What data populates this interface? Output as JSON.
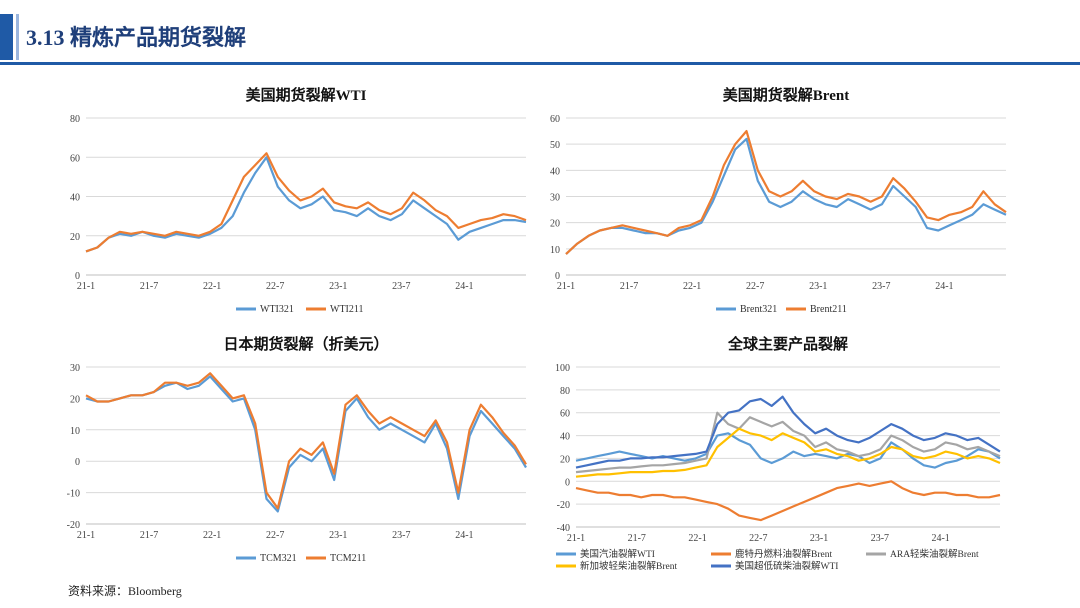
{
  "header": {
    "title": "3.13 精炼产品期货裂解"
  },
  "source": "资料来源：Bloomberg",
  "colors": {
    "accent": "#1f5aa6",
    "blue": "#5b9bd5",
    "orange": "#ed7d31",
    "gray": "#a5a5a5",
    "yellow": "#ffc000",
    "darkblue": "#4472c4"
  },
  "chart_data": [
    {
      "id": "wti",
      "type": "line",
      "title": "美国期货裂解WTI",
      "x_ticks": [
        "21-1",
        "21-7",
        "22-1",
        "22-7",
        "23-1",
        "23-7",
        "24-1"
      ],
      "ylim": [
        0,
        80
      ],
      "y_ticks": [
        0,
        20,
        40,
        60,
        80
      ],
      "grid": true,
      "legend": "bottom",
      "series": [
        {
          "name": "WTI321",
          "color": "#5b9bd5",
          "values": [
            12,
            14,
            19,
            21,
            20,
            22,
            20,
            19,
            21,
            20,
            19,
            21,
            24,
            30,
            42,
            52,
            60,
            45,
            38,
            34,
            36,
            40,
            33,
            32,
            30,
            34,
            30,
            28,
            31,
            38,
            34,
            30,
            26,
            18,
            22,
            24,
            26,
            28,
            28,
            27
          ]
        },
        {
          "name": "WTI211",
          "color": "#ed7d31",
          "values": [
            12,
            14,
            19,
            22,
            21,
            22,
            21,
            20,
            22,
            21,
            20,
            22,
            26,
            38,
            50,
            56,
            62,
            50,
            43,
            38,
            40,
            44,
            37,
            35,
            34,
            37,
            33,
            31,
            34,
            42,
            38,
            33,
            30,
            24,
            26,
            28,
            29,
            31,
            30,
            28
          ]
        }
      ]
    },
    {
      "id": "brent",
      "type": "line",
      "title": "美国期货裂解Brent",
      "x_ticks": [
        "21-1",
        "21-7",
        "22-1",
        "22-7",
        "23-1",
        "23-7",
        "24-1"
      ],
      "ylim": [
        0,
        60
      ],
      "y_ticks": [
        0,
        10,
        20,
        30,
        40,
        50,
        60
      ],
      "grid": true,
      "legend": "bottom",
      "series": [
        {
          "name": "Brent321",
          "color": "#5b9bd5",
          "values": [
            8,
            12,
            15,
            17,
            18,
            18,
            17,
            16,
            16,
            15,
            17,
            18,
            20,
            28,
            38,
            48,
            52,
            36,
            28,
            26,
            28,
            32,
            29,
            27,
            26,
            29,
            27,
            25,
            27,
            34,
            30,
            26,
            18,
            17,
            19,
            21,
            23,
            27,
            25,
            23
          ]
        },
        {
          "name": "Brent211",
          "color": "#ed7d31",
          "values": [
            8,
            12,
            15,
            17,
            18,
            19,
            18,
            17,
            16,
            15,
            18,
            19,
            21,
            30,
            42,
            50,
            55,
            40,
            32,
            30,
            32,
            36,
            32,
            30,
            29,
            31,
            30,
            28,
            30,
            37,
            33,
            28,
            22,
            21,
            23,
            24,
            26,
            32,
            27,
            24
          ]
        }
      ]
    },
    {
      "id": "japan",
      "type": "line",
      "title": "日本期货裂解（折美元）",
      "x_ticks": [
        "21-1",
        "21-7",
        "22-1",
        "22-7",
        "23-1",
        "23-7",
        "24-1"
      ],
      "ylim": [
        -20,
        30
      ],
      "y_ticks": [
        -20,
        -10,
        0,
        10,
        20,
        30
      ],
      "grid": true,
      "legend": "bottom",
      "series": [
        {
          "name": "TCM321",
          "color": "#5b9bd5",
          "values": [
            20,
            19,
            19,
            20,
            21,
            21,
            22,
            24,
            25,
            23,
            24,
            27,
            23,
            19,
            20,
            10,
            -12,
            -16,
            -2,
            2,
            0,
            4,
            -6,
            16,
            20,
            14,
            10,
            12,
            10,
            8,
            6,
            12,
            4,
            -12,
            8,
            16,
            12,
            8,
            4,
            -2
          ]
        },
        {
          "name": "TCM211",
          "color": "#ed7d31",
          "values": [
            21,
            19,
            19,
            20,
            21,
            21,
            22,
            25,
            25,
            24,
            25,
            28,
            24,
            20,
            21,
            12,
            -10,
            -15,
            0,
            4,
            2,
            6,
            -4,
            18,
            21,
            16,
            12,
            14,
            12,
            10,
            8,
            13,
            6,
            -10,
            10,
            18,
            14,
            9,
            5,
            -1
          ]
        }
      ]
    },
    {
      "id": "global",
      "type": "line",
      "title": "全球主要产品裂解",
      "x_ticks": [
        "21-1",
        "21-7",
        "22-1",
        "22-7",
        "23-1",
        "23-7",
        "24-1"
      ],
      "ylim": [
        -40,
        100
      ],
      "y_ticks": [
        -40,
        -20,
        0,
        20,
        40,
        60,
        80,
        100
      ],
      "grid": true,
      "legend": "bottom",
      "series": [
        {
          "name": "美国汽油裂解WTI",
          "color": "#5b9bd5",
          "values": [
            18,
            20,
            22,
            24,
            26,
            24,
            22,
            20,
            22,
            20,
            18,
            20,
            24,
            40,
            42,
            36,
            32,
            20,
            16,
            20,
            26,
            22,
            24,
            22,
            20,
            24,
            22,
            16,
            20,
            34,
            28,
            20,
            14,
            12,
            16,
            18,
            22,
            28,
            26,
            20
          ]
        },
        {
          "name": "鹿特丹燃料油裂解Brent",
          "color": "#ed7d31",
          "values": [
            -6,
            -8,
            -10,
            -10,
            -12,
            -12,
            -14,
            -12,
            -12,
            -14,
            -14,
            -16,
            -18,
            -20,
            -24,
            -30,
            -32,
            -34,
            -30,
            -26,
            -22,
            -18,
            -14,
            -10,
            -6,
            -4,
            -2,
            -4,
            -2,
            0,
            -6,
            -10,
            -12,
            -10,
            -10,
            -12,
            -12,
            -14,
            -14,
            -12
          ]
        },
        {
          "name": "ARA轻柴油裂解Brent",
          "color": "#a5a5a5",
          "values": [
            8,
            9,
            10,
            11,
            12,
            12,
            13,
            14,
            14,
            15,
            16,
            18,
            20,
            60,
            50,
            46,
            56,
            52,
            48,
            52,
            44,
            40,
            30,
            34,
            28,
            26,
            22,
            24,
            28,
            40,
            36,
            30,
            26,
            28,
            34,
            32,
            28,
            30,
            26,
            22
          ]
        },
        {
          "name": "新加坡轻柴油裂解Brent",
          "color": "#ffc000",
          "values": [
            4,
            5,
            6,
            6,
            7,
            8,
            8,
            8,
            9,
            9,
            10,
            12,
            14,
            30,
            38,
            46,
            42,
            40,
            36,
            42,
            38,
            34,
            26,
            28,
            24,
            22,
            18,
            20,
            24,
            30,
            28,
            22,
            20,
            22,
            26,
            24,
            20,
            22,
            20,
            16
          ]
        },
        {
          "name": "美国超低硫柴油裂解WTI",
          "color": "#4472c4",
          "values": [
            12,
            14,
            16,
            18,
            18,
            20,
            20,
            21,
            21,
            22,
            23,
            24,
            26,
            50,
            60,
            62,
            70,
            72,
            66,
            74,
            60,
            50,
            42,
            46,
            40,
            36,
            34,
            38,
            44,
            50,
            46,
            40,
            36,
            38,
            42,
            40,
            36,
            38,
            32,
            26
          ]
        }
      ]
    }
  ]
}
